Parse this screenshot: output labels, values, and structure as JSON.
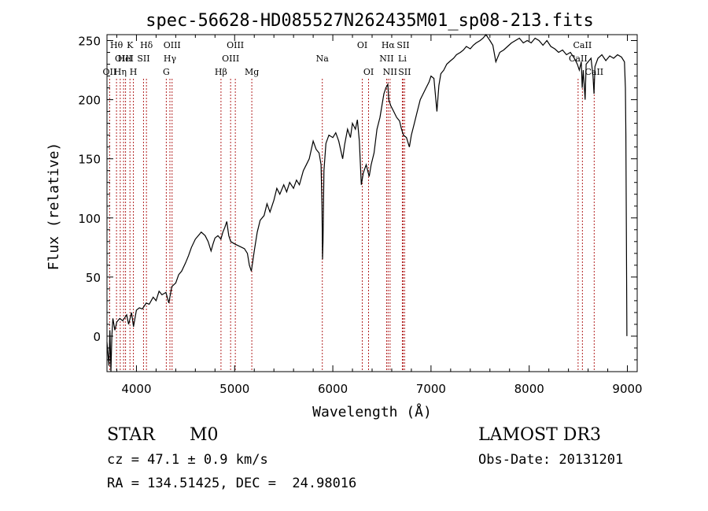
{
  "chart_data": {
    "type": "line",
    "title": "spec-56628-HD085527N262435M01_sp08-213.fits",
    "xlabel": "Wavelength (Å)",
    "ylabel": "Flux (relative)",
    "xlim": [
      3700,
      9100
    ],
    "ylim": [
      -30,
      255
    ],
    "x_ticks": [
      4000,
      5000,
      6000,
      7000,
      8000,
      9000
    ],
    "y_ticks": [
      0,
      50,
      100,
      150,
      200,
      250
    ],
    "x_tick_labels": [
      "4000",
      "5000",
      "6000",
      "7000",
      "8000",
      "9000"
    ],
    "y_tick_labels": [
      "0",
      "50",
      "100",
      "150",
      "200",
      "250"
    ],
    "series": [
      {
        "name": "flux",
        "color": "#000000",
        "points": [
          [
            3700,
            -5
          ],
          [
            3720,
            -25
          ],
          [
            3730,
            5
          ],
          [
            3740,
            -30
          ],
          [
            3750,
            0
          ],
          [
            3760,
            15
          ],
          [
            3780,
            5
          ],
          [
            3800,
            12
          ],
          [
            3830,
            15
          ],
          [
            3860,
            13
          ],
          [
            3900,
            18
          ],
          [
            3920,
            10
          ],
          [
            3950,
            20
          ],
          [
            3970,
            8
          ],
          [
            4000,
            22
          ],
          [
            4030,
            24
          ],
          [
            4060,
            23
          ],
          [
            4100,
            28
          ],
          [
            4130,
            27
          ],
          [
            4170,
            33
          ],
          [
            4200,
            30
          ],
          [
            4230,
            38
          ],
          [
            4260,
            35
          ],
          [
            4300,
            37
          ],
          [
            4330,
            28
          ],
          [
            4360,
            42
          ],
          [
            4400,
            45
          ],
          [
            4430,
            52
          ],
          [
            4460,
            55
          ],
          [
            4500,
            62
          ],
          [
            4530,
            68
          ],
          [
            4560,
            75
          ],
          [
            4600,
            82
          ],
          [
            4630,
            85
          ],
          [
            4660,
            88
          ],
          [
            4700,
            85
          ],
          [
            4730,
            80
          ],
          [
            4760,
            72
          ],
          [
            4780,
            78
          ],
          [
            4800,
            83
          ],
          [
            4830,
            85
          ],
          [
            4860,
            82
          ],
          [
            4880,
            88
          ],
          [
            4900,
            92
          ],
          [
            4920,
            97
          ],
          [
            4940,
            85
          ],
          [
            4960,
            80
          ],
          [
            5000,
            78
          ],
          [
            5050,
            76
          ],
          [
            5100,
            74
          ],
          [
            5130,
            70
          ],
          [
            5150,
            60
          ],
          [
            5170,
            55
          ],
          [
            5200,
            72
          ],
          [
            5230,
            88
          ],
          [
            5260,
            98
          ],
          [
            5300,
            102
          ],
          [
            5330,
            112
          ],
          [
            5360,
            105
          ],
          [
            5400,
            115
          ],
          [
            5430,
            125
          ],
          [
            5460,
            120
          ],
          [
            5500,
            128
          ],
          [
            5530,
            122
          ],
          [
            5560,
            130
          ],
          [
            5600,
            125
          ],
          [
            5630,
            132
          ],
          [
            5660,
            128
          ],
          [
            5700,
            140
          ],
          [
            5730,
            145
          ],
          [
            5760,
            150
          ],
          [
            5800,
            165
          ],
          [
            5830,
            158
          ],
          [
            5860,
            155
          ],
          [
            5880,
            145
          ],
          [
            5890,
            110
          ],
          [
            5895,
            65
          ],
          [
            5900,
            80
          ],
          [
            5910,
            140
          ],
          [
            5930,
            163
          ],
          [
            5960,
            170
          ],
          [
            6000,
            168
          ],
          [
            6030,
            172
          ],
          [
            6060,
            165
          ],
          [
            6100,
            150
          ],
          [
            6120,
            162
          ],
          [
            6150,
            175
          ],
          [
            6180,
            168
          ],
          [
            6200,
            180
          ],
          [
            6230,
            175
          ],
          [
            6250,
            183
          ],
          [
            6270,
            165
          ],
          [
            6290,
            128
          ],
          [
            6310,
            138
          ],
          [
            6340,
            145
          ],
          [
            6370,
            135
          ],
          [
            6390,
            145
          ],
          [
            6420,
            155
          ],
          [
            6450,
            175
          ],
          [
            6480,
            185
          ],
          [
            6500,
            195
          ],
          [
            6520,
            205
          ],
          [
            6540,
            210
          ],
          [
            6560,
            213
          ],
          [
            6570,
            200
          ],
          [
            6590,
            195
          ],
          [
            6620,
            190
          ],
          [
            6650,
            185
          ],
          [
            6680,
            182
          ],
          [
            6700,
            175
          ],
          [
            6720,
            170
          ],
          [
            6750,
            168
          ],
          [
            6780,
            160
          ],
          [
            6800,
            170
          ],
          [
            6830,
            180
          ],
          [
            6860,
            190
          ],
          [
            6890,
            200
          ],
          [
            6920,
            205
          ],
          [
            6950,
            210
          ],
          [
            6980,
            215
          ],
          [
            7000,
            220
          ],
          [
            7030,
            218
          ],
          [
            7060,
            190
          ],
          [
            7080,
            212
          ],
          [
            7100,
            222
          ],
          [
            7130,
            225
          ],
          [
            7160,
            230
          ],
          [
            7200,
            233
          ],
          [
            7230,
            235
          ],
          [
            7260,
            238
          ],
          [
            7300,
            240
          ],
          [
            7330,
            242
          ],
          [
            7360,
            245
          ],
          [
            7400,
            243
          ],
          [
            7430,
            246
          ],
          [
            7460,
            248
          ],
          [
            7500,
            250
          ],
          [
            7530,
            252
          ],
          [
            7560,
            255
          ],
          [
            7600,
            250
          ],
          [
            7630,
            246
          ],
          [
            7660,
            232
          ],
          [
            7700,
            240
          ],
          [
            7740,
            242
          ],
          [
            7780,
            245
          ],
          [
            7820,
            248
          ],
          [
            7860,
            250
          ],
          [
            7900,
            252
          ],
          [
            7940,
            248
          ],
          [
            7980,
            250
          ],
          [
            8020,
            248
          ],
          [
            8060,
            252
          ],
          [
            8100,
            250
          ],
          [
            8140,
            246
          ],
          [
            8180,
            250
          ],
          [
            8220,
            245
          ],
          [
            8260,
            243
          ],
          [
            8300,
            240
          ],
          [
            8340,
            242
          ],
          [
            8380,
            238
          ],
          [
            8420,
            240
          ],
          [
            8460,
            235
          ],
          [
            8490,
            230
          ],
          [
            8510,
            225
          ],
          [
            8530,
            232
          ],
          [
            8540,
            210
          ],
          [
            8550,
            225
          ],
          [
            8570,
            200
          ],
          [
            8580,
            230
          ],
          [
            8600,
            232
          ],
          [
            8630,
            235
          ],
          [
            8650,
            220
          ],
          [
            8660,
            205
          ],
          [
            8670,
            228
          ],
          [
            8700,
            235
          ],
          [
            8740,
            238
          ],
          [
            8780,
            233
          ],
          [
            8820,
            237
          ],
          [
            8860,
            235
          ],
          [
            8900,
            238
          ],
          [
            8940,
            236
          ],
          [
            8970,
            232
          ],
          [
            8980,
            210
          ],
          [
            8985,
            170
          ],
          [
            8990,
            80
          ],
          [
            8995,
            0
          ]
        ]
      }
    ],
    "line_color": "#b22222",
    "lines": [
      {
        "label": "OII",
        "x": 3727,
        "row": 3
      },
      {
        "label": "Hθ",
        "x": 3797,
        "row": 1
      },
      {
        "label": "Hη",
        "x": 3835,
        "row": 3
      },
      {
        "label": "OIII",
        "x": 3869,
        "row": 2
      },
      {
        "label": "HeI",
        "x": 3889,
        "row": 2
      },
      {
        "label": "K",
        "x": 3934,
        "row": 1
      },
      {
        "label": "H",
        "x": 3969,
        "row": 3
      },
      {
        "label": "SII",
        "x": 4072,
        "row": 2
      },
      {
        "label": "Hδ",
        "x": 4102,
        "row": 1
      },
      {
        "label": "G",
        "x": 4304,
        "row": 3
      },
      {
        "label": "Hγ",
        "x": 4341,
        "row": 2
      },
      {
        "label": "OIII",
        "x": 4363,
        "row": 1
      },
      {
        "label": "Hβ",
        "x": 4861,
        "row": 3
      },
      {
        "label": "OIII",
        "x": 4959,
        "row": 2
      },
      {
        "label": "OIII",
        "x": 5007,
        "row": 1
      },
      {
        "label": "Mg",
        "x": 5175,
        "row": 3
      },
      {
        "label": "Na",
        "x": 5893,
        "row": 2
      },
      {
        "label": "OI",
        "x": 6300,
        "row": 1
      },
      {
        "label": "OI",
        "x": 6364,
        "row": 3
      },
      {
        "label": "NII",
        "x": 6548,
        "row": 2
      },
      {
        "label": "Hα",
        "x": 6563,
        "row": 1
      },
      {
        "label": "NII",
        "x": 6583,
        "row": 3
      },
      {
        "label": "Li",
        "x": 6708,
        "row": 2
      },
      {
        "label": "SII",
        "x": 6716,
        "row": 1
      },
      {
        "label": "SII",
        "x": 6731,
        "row": 3
      },
      {
        "label": "CaII",
        "x": 8498,
        "row": 2
      },
      {
        "label": "CaII",
        "x": 8542,
        "row": 1
      },
      {
        "label": "CaII",
        "x": 8662,
        "row": 3
      }
    ]
  },
  "info": {
    "object_class": "STAR",
    "subclass": "M0",
    "survey": "LAMOST DR3",
    "redshift": "cz = 47.1 ± 0.9 km/s",
    "obs_date": "Obs-Date: 20131201",
    "coords": "RA = 134.51425, DEC =  24.98016"
  }
}
